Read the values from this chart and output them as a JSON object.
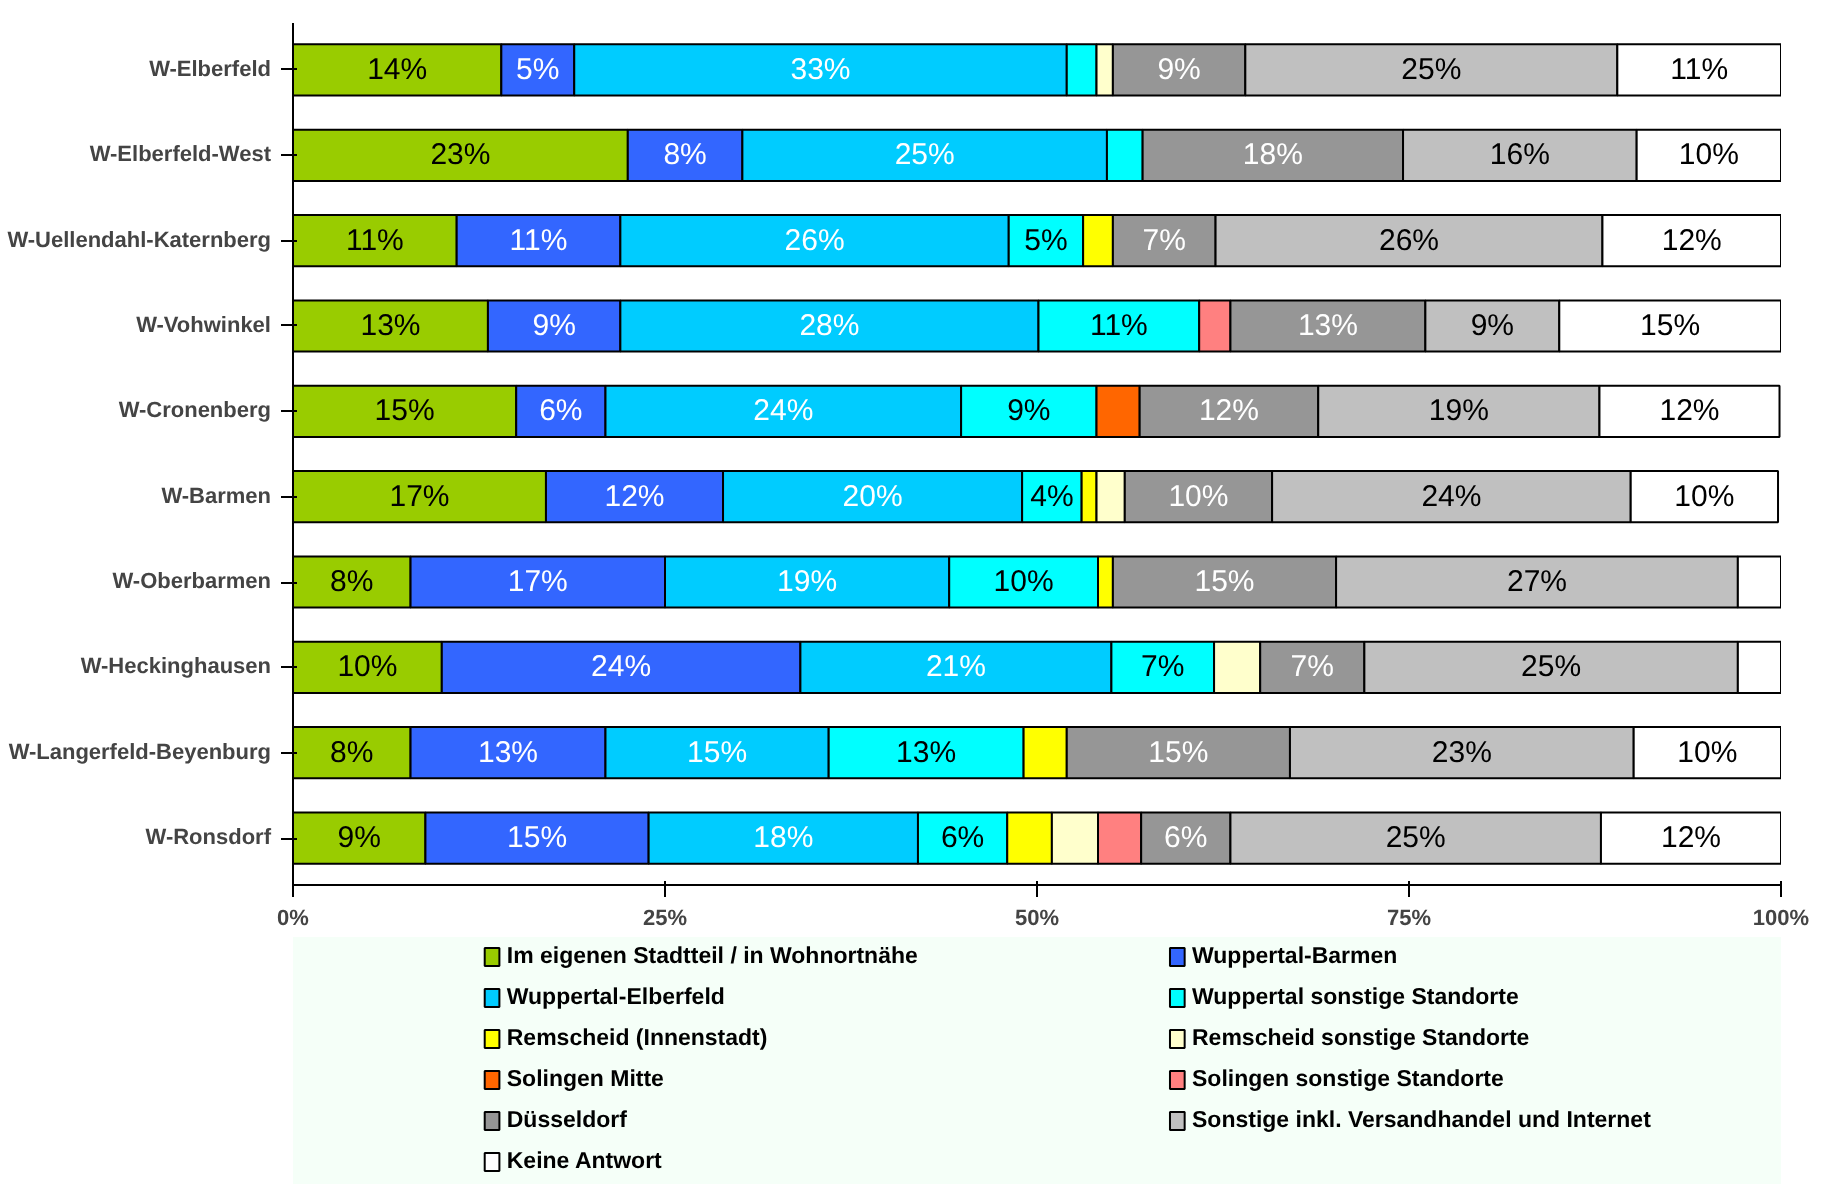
{
  "chart_data": {
    "type": "bar",
    "orientation": "horizontal",
    "stacked": true,
    "categories": [
      "W-Elberfeld",
      "W-Elberfeld-West",
      "W-Uellendahl-Katernberg",
      "W-Vohwinkel",
      "W-Cronenberg",
      "W-Barmen",
      "W-Oberbarmen",
      "W-Heckinghausen",
      "W-Langerfeld-Beyenburg",
      "W-Ronsdorf"
    ],
    "xlim": [
      0,
      100
    ],
    "xticks": [
      {
        "value": 0,
        "label": "0%"
      },
      {
        "value": 25,
        "label": "25%"
      },
      {
        "value": 50,
        "label": "50%"
      },
      {
        "value": 75,
        "label": "75%"
      },
      {
        "value": 100,
        "label": "100%"
      }
    ],
    "grid": false,
    "legend": "bottom",
    "series": [
      {
        "name": "Im eigenen Stadtteil / in Wohnortnähe",
        "color": "#99cc00",
        "values": [
          14.0,
          22.5,
          11.0,
          13.1,
          15.0,
          17.0,
          7.9,
          10.0,
          7.9,
          8.9
        ],
        "value_labels": [
          "14%",
          "23%",
          "11%",
          "13%",
          "15%",
          "17%",
          "8%",
          "10%",
          "8%",
          "9%"
        ]
      },
      {
        "name": "Wuppertal-Barmen",
        "color": "#3366ff",
        "values": [
          4.9,
          7.7,
          11.0,
          8.9,
          6.0,
          11.9,
          17.1,
          24.1,
          13.1,
          15.0
        ],
        "value_labels": [
          "5%",
          "8%",
          "11%",
          "9%",
          "6%",
          "12%",
          "17%",
          "24%",
          "13%",
          "15%"
        ]
      },
      {
        "name": "Wuppertal-Elberfeld",
        "color": "#00ccff",
        "values": [
          33.1,
          24.5,
          26.1,
          28.1,
          23.9,
          20.1,
          19.1,
          20.9,
          15.0,
          18.1
        ],
        "value_labels": [
          "33%",
          "25%",
          "26%",
          "28%",
          "24%",
          "20%",
          "19%",
          "21%",
          "15%",
          "18%"
        ]
      },
      {
        "name": "Wuppertal sonstige Standorte",
        "color": "#00ffff",
        "values": [
          2.0,
          2.4,
          5.0,
          10.8,
          9.1,
          4.0,
          10.0,
          6.9,
          13.1,
          6.0
        ],
        "value_labels": [
          null,
          null,
          "5%",
          "11%",
          "9%",
          "4%",
          "10%",
          "7%",
          "13%",
          "6%"
        ]
      },
      {
        "name": "Remscheid (Innenstadt)",
        "color": "#ffff00",
        "values": [
          null,
          null,
          2.0,
          null,
          null,
          1.0,
          1.0,
          null,
          2.9,
          3.0
        ],
        "value_labels": [
          null,
          null,
          null,
          null,
          null,
          null,
          null,
          null,
          null,
          null
        ]
      },
      {
        "name": "Remscheid sonstige Standorte",
        "color": "#ffffcc",
        "values": [
          1.1,
          null,
          null,
          null,
          null,
          1.9,
          null,
          3.1,
          null,
          3.1
        ],
        "value_labels": [
          null,
          null,
          null,
          null,
          null,
          null,
          null,
          null,
          null,
          null
        ]
      },
      {
        "name": "Solingen Mitte",
        "color": "#ff6600",
        "values": [
          null,
          null,
          null,
          null,
          2.9,
          null,
          null,
          null,
          null,
          null
        ],
        "value_labels": [
          null,
          null,
          null,
          null,
          null,
          null,
          null,
          null,
          null,
          null
        ]
      },
      {
        "name": "Solingen sonstige Standorte",
        "color": "#ff8080",
        "values": [
          null,
          null,
          null,
          2.1,
          null,
          null,
          null,
          null,
          null,
          2.9
        ],
        "value_labels": [
          null,
          null,
          null,
          null,
          null,
          null,
          null,
          null,
          null,
          null
        ]
      },
      {
        "name": "Düsseldorf",
        "color": "#969696",
        "values": [
          8.9,
          17.5,
          6.9,
          13.1,
          12.0,
          9.9,
          15.0,
          7.0,
          15.0,
          6.0
        ],
        "value_labels": [
          "9%",
          "18%",
          "7%",
          "13%",
          "12%",
          "10%",
          "15%",
          "7%",
          "15%",
          "6%"
        ]
      },
      {
        "name": "Sonstige inkl. Versandhandel und Internet",
        "color": "#c0c0c0",
        "values": [
          25.0,
          15.7,
          26.0,
          9.0,
          18.9,
          24.1,
          27.0,
          25.1,
          23.1,
          24.9
        ],
        "value_labels": [
          "25%",
          "16%",
          "26%",
          "9%",
          "19%",
          "24%",
          "27%",
          "25%",
          "23%",
          "25%"
        ]
      },
      {
        "name": "Keine Antwort",
        "color": "#ffffff",
        "values": [
          11.0,
          9.7,
          12.0,
          14.9,
          12.1,
          9.9,
          2.9,
          2.9,
          9.9,
          12.1
        ],
        "value_labels": [
          "11%",
          "10%",
          "12%",
          "15%",
          "12%",
          "10%",
          null,
          null,
          "10%",
          "12%"
        ]
      }
    ]
  }
}
